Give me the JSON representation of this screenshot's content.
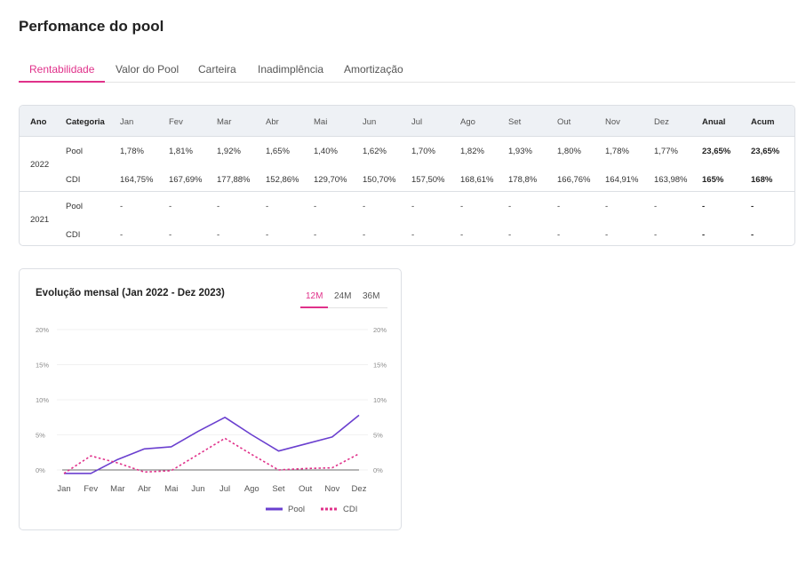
{
  "page": {
    "title": "Perfomance do pool"
  },
  "tabs": [
    {
      "label": "Rentabilidade",
      "active": true
    },
    {
      "label": "Valor do Pool",
      "active": false
    },
    {
      "label": "Carteira",
      "active": false
    },
    {
      "label": "Inadimplência",
      "active": false
    },
    {
      "label": "Amortização",
      "active": false
    }
  ],
  "table": {
    "headers": [
      "Ano",
      "Categoria",
      "Jan",
      "Fev",
      "Mar",
      "Abr",
      "Mai",
      "Jun",
      "Jul",
      "Ago",
      "Set",
      "Out",
      "Nov",
      "Dez",
      "Anual",
      "Acum"
    ],
    "groups": [
      {
        "year": "2022",
        "rows": [
          {
            "category": "Pool",
            "values": [
              "1,78%",
              "1,81%",
              "1,92%",
              "1,65%",
              "1,40%",
              "1,62%",
              "1,70%",
              "1,82%",
              "1,93%",
              "1,80%",
              "1,78%",
              "1,77%"
            ],
            "anual": "23,65%",
            "acum": "23,65%"
          },
          {
            "category": "CDI",
            "values": [
              "164,75%",
              "167,69%",
              "177,88%",
              "152,86%",
              "129,70%",
              "150,70%",
              "157,50%",
              "168,61%",
              "178,8%",
              "166,76%",
              "164,91%",
              "163,98%"
            ],
            "anual": "165%",
            "acum": "168%"
          }
        ]
      },
      {
        "year": "2021",
        "rows": [
          {
            "category": "Pool",
            "values": [
              "-",
              "-",
              "-",
              "-",
              "-",
              "-",
              "-",
              "-",
              "-",
              "-",
              "-",
              "-"
            ],
            "anual": "-",
            "acum": "-"
          },
          {
            "category": "CDI",
            "values": [
              "-",
              "-",
              "-",
              "-",
              "-",
              "-",
              "-",
              "-",
              "-",
              "-",
              "-",
              "-"
            ],
            "anual": "-",
            "acum": "-"
          }
        ]
      }
    ]
  },
  "chart_section": {
    "title": "Evolução mensal (Jan 2022 - Dez 2023)",
    "ranges": [
      {
        "label": "12M",
        "active": true
      },
      {
        "label": "24M",
        "active": false
      },
      {
        "label": "36M",
        "active": false
      }
    ]
  },
  "chart_data": {
    "type": "line",
    "categories": [
      "Jan",
      "Fev",
      "Mar",
      "Abr",
      "Mai",
      "Jun",
      "Jul",
      "Ago",
      "Set",
      "Out",
      "Nov",
      "Dez"
    ],
    "series": [
      {
        "name": "Pool",
        "values": [
          -0.5,
          -0.5,
          1.5,
          3.0,
          3.3,
          5.5,
          7.5,
          5.0,
          2.7,
          3.7,
          4.7,
          7.8
        ],
        "color": "#6a3fcf",
        "style": "solid"
      },
      {
        "name": "CDI",
        "values": [
          -0.5,
          2.0,
          1.0,
          -0.3,
          -0.1,
          2.2,
          4.5,
          2.2,
          0.0,
          0.2,
          0.3,
          2.3
        ],
        "color": "#e0318a",
        "style": "dotted"
      }
    ],
    "yticks": [
      "0%",
      "5%",
      "10%",
      "15%",
      "20%"
    ],
    "ylim": [
      0,
      20
    ],
    "axes": "left-and-right",
    "legend": "bottom-right"
  }
}
